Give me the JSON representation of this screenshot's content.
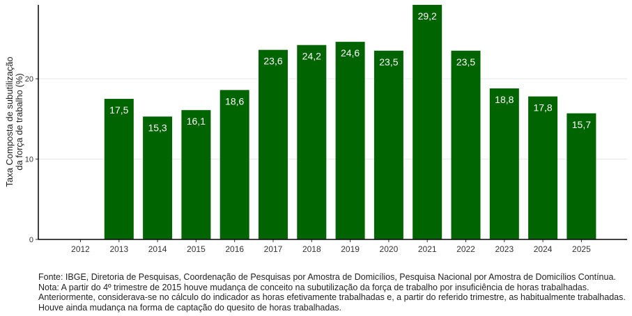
{
  "chart_data": {
    "type": "bar",
    "categories": [
      "2012",
      "2013",
      "2014",
      "2015",
      "2016",
      "2017",
      "2018",
      "2019",
      "2020",
      "2021",
      "2022",
      "2023",
      "2024",
      "2025"
    ],
    "values": [
      null,
      17.5,
      15.3,
      16.1,
      18.6,
      23.6,
      24.2,
      24.6,
      23.5,
      29.2,
      23.5,
      18.8,
      17.8,
      15.7
    ],
    "data_labels": [
      "",
      "17,5",
      "15,3",
      "16,1",
      "18,6",
      "23,6",
      "24,2",
      "24,6",
      "23,5",
      "29,2",
      "23,5",
      "18,8",
      "17,8",
      "15,7"
    ],
    "ylabel_lines": [
      "Taxa Composta de subutilização",
      "da força de trabalho (%)"
    ],
    "xlabel": "",
    "yticks": [
      0,
      10,
      20
    ],
    "ytick_labels": [
      "0",
      "10",
      "20"
    ],
    "ylim": [
      0,
      29.2
    ],
    "grid": "horizontal",
    "bar_color": "#006400",
    "label_color": "#ffffff"
  },
  "notes": [
    "Fonte: IBGE, Diretoria de Pesquisas, Coordenação de Pesquisas por Amostra de Domicílios, Pesquisa Nacional por Amostra de Domicílios Contínua.",
    "Nota: A partir do 4º trimestre de 2015 houve mudança de conceito na subutilização da força de trabalho por insuficiência de horas trabalhadas.",
    "Anteriormente, considerava-se no cálculo do indicador as horas efetivamente trabalhadas e, a partir do referido trimestre, as habitualmente trabalhadas.",
    "Houve ainda mudança na forma de captação do quesito de horas trabalhadas."
  ]
}
